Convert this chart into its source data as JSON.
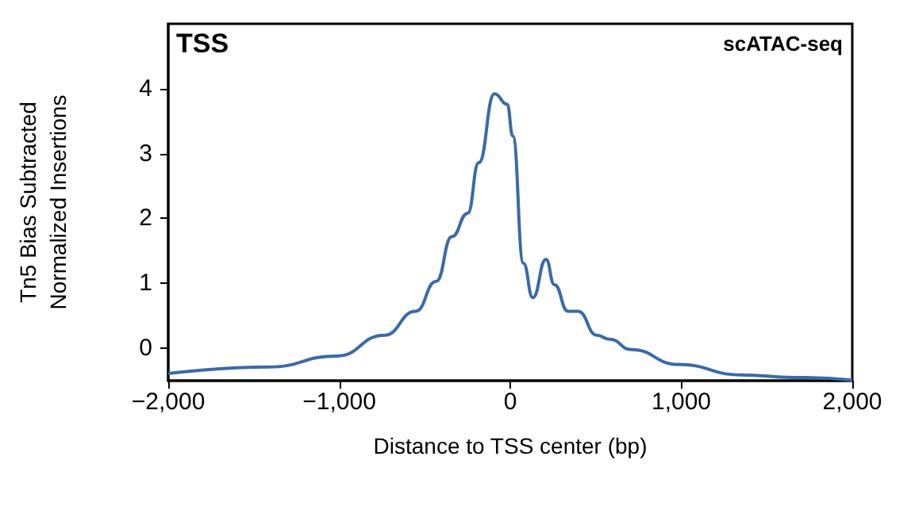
{
  "chart_data": {
    "type": "line",
    "xlabel": "Distance to TSS center (bp)",
    "ylabel": "Tn5 Bias Subtracted\nNormalized Insertions",
    "annotations": [
      "TSS",
      "scATAC-seq"
    ],
    "x": [
      -2000,
      -1416,
      -1014,
      -737,
      -553,
      -433,
      -341,
      -249,
      -184,
      -92,
      -18,
      15,
      77,
      132,
      209,
      258,
      338,
      396,
      507,
      581,
      707,
      983,
      1352,
      1659,
      2000
    ],
    "series": [
      {
        "color": "#3a6aa8",
        "values": [
          -0.39,
          -0.29,
          -0.12,
          0.2,
          0.57,
          1.03,
          1.72,
          2.08,
          2.86,
          3.92,
          3.76,
          3.27,
          1.31,
          0.78,
          1.37,
          0.98,
          0.57,
          0.57,
          0.2,
          0.14,
          -0.02,
          -0.25,
          -0.41,
          -0.45,
          -0.49
        ]
      }
    ],
    "xlim": [
      -2000,
      2000
    ],
    "xticks": [
      {
        "value": -2000,
        "label": "−2,000"
      },
      {
        "value": -1000,
        "label": "−1,000"
      },
      0,
      {
        "value": 1000,
        "label": "1,000"
      },
      {
        "value": 2000,
        "label": "2,000"
      }
    ],
    "ylim": [
      -0.5,
      5
    ],
    "yticks": [
      0,
      1,
      2,
      3,
      4
    ],
    "marker": "none",
    "line_style": "solid"
  }
}
